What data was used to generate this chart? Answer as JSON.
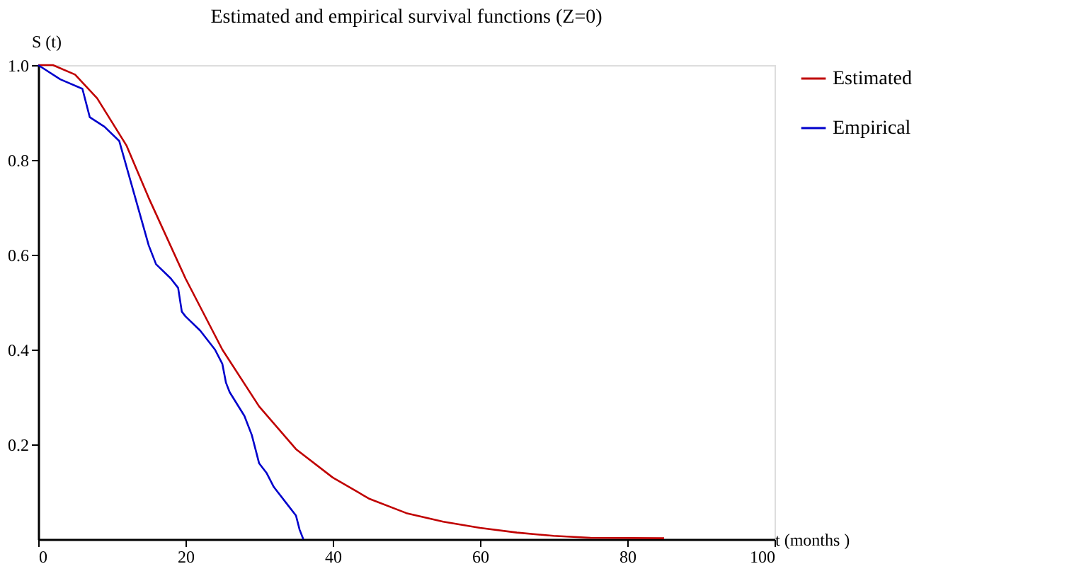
{
  "chart_data": {
    "type": "line",
    "title": "Estimated and empirical survival functions (Z=0)",
    "xlabel": "t (months )",
    "ylabel": "S (t)",
    "xlim": [
      0,
      100
    ],
    "xticks": [
      0,
      20,
      40,
      60,
      80,
      100
    ],
    "ylim": [
      0,
      1.0
    ],
    "yticks": [
      0.2,
      0.4,
      0.6,
      0.8,
      {
        "value": 1.0,
        "label": "1.0"
      }
    ],
    "grid": false,
    "legend": "right",
    "marker": "none",
    "line_style": "solid",
    "series": [
      {
        "name": "Estimated",
        "color": "#c00000",
        "x": [
          0,
          2,
          5,
          8,
          12,
          15,
          20,
          25,
          30,
          35,
          40,
          45,
          50,
          55,
          60,
          65,
          70,
          75,
          85
        ],
        "values": [
          1.0,
          1.0,
          0.98,
          0.93,
          0.83,
          0.72,
          0.55,
          0.4,
          0.28,
          0.19,
          0.13,
          0.085,
          0.055,
          0.037,
          0.024,
          0.014,
          0.007,
          0.003,
          0.002
        ]
      },
      {
        "name": "Empirical",
        "color": "#0000cc",
        "x": [
          0,
          3,
          6,
          7,
          9,
          11,
          13,
          15,
          16,
          18,
          19,
          19.5,
          20,
          22,
          24,
          25,
          25.5,
          26,
          28,
          29,
          29.5,
          30,
          31,
          32,
          34,
          35,
          35.5,
          36
        ],
        "values": [
          1.0,
          0.97,
          0.95,
          0.89,
          0.87,
          0.84,
          0.73,
          0.62,
          0.58,
          0.55,
          0.53,
          0.48,
          0.47,
          0.44,
          0.4,
          0.37,
          0.33,
          0.31,
          0.26,
          0.22,
          0.19,
          0.16,
          0.14,
          0.11,
          0.07,
          0.05,
          0.02,
          0.0
        ]
      }
    ]
  }
}
